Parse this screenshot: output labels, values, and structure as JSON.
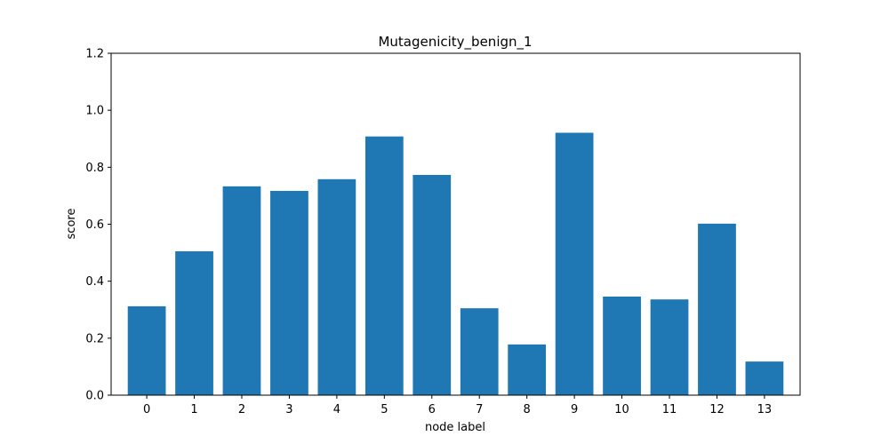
{
  "chart_data": {
    "type": "bar",
    "title": "Mutagenicity_benign_1",
    "xlabel": "node label",
    "ylabel": "score",
    "categories": [
      "0",
      "1",
      "2",
      "3",
      "4",
      "5",
      "6",
      "7",
      "8",
      "9",
      "10",
      "11",
      "12",
      "13"
    ],
    "values": [
      0.312,
      0.505,
      0.733,
      0.717,
      0.758,
      0.908,
      0.773,
      0.305,
      0.178,
      0.921,
      0.346,
      0.336,
      0.602,
      0.118
    ],
    "ylim": [
      0,
      1.2
    ],
    "yticks": [
      "0.0",
      "0.2",
      "0.4",
      "0.6",
      "0.8",
      "1.0",
      "1.2"
    ],
    "grid": false,
    "colors": {
      "bar": "#1f77b4",
      "axis": "#000000",
      "background": "#ffffff"
    }
  }
}
